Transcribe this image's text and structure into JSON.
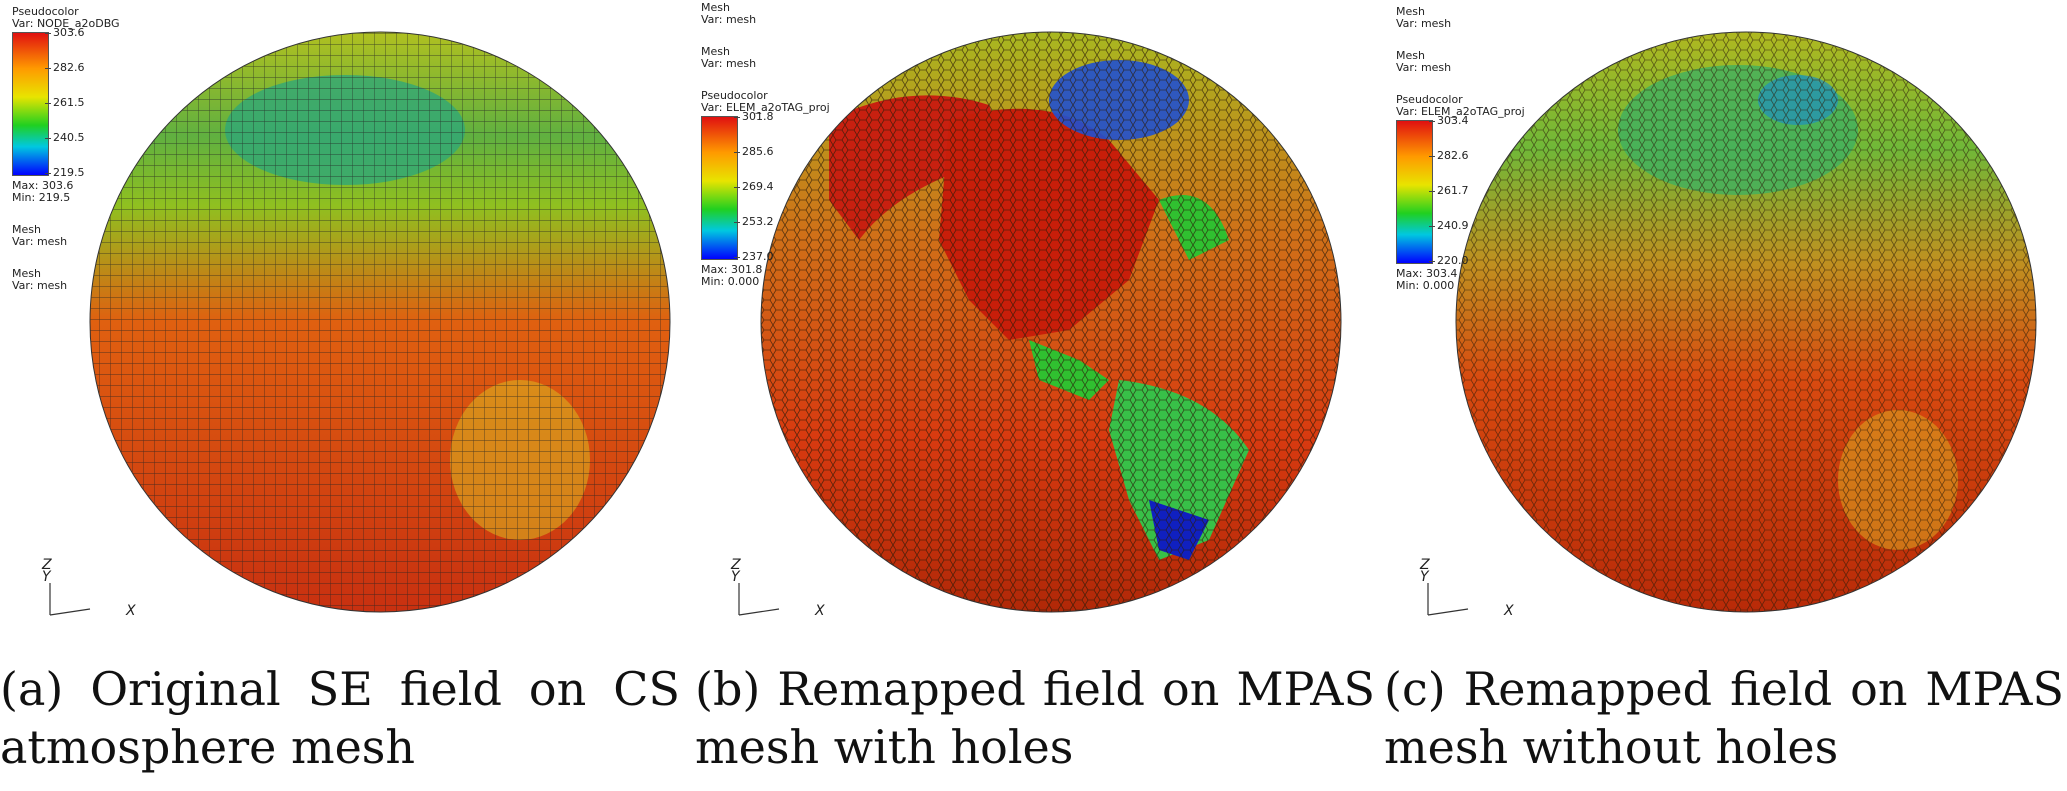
{
  "panels": [
    {
      "legend_top": {
        "pc_title": "Pseudocolor",
        "pc_var": "Var: NODE_a2oDBG"
      },
      "ticks": [
        "303.6",
        "282.6",
        "261.5",
        "240.5",
        "219.5"
      ],
      "max": "Max:  303.6",
      "min": "Min:  219.5",
      "mesh_blocks": [
        {
          "title": "Mesh",
          "var": "Var: mesh"
        },
        {
          "title": "Mesh",
          "var": "Var: mesh"
        }
      ],
      "axis_labels": {
        "z": "Z",
        "y": "Y",
        "x": "X"
      },
      "caption": "(a) Original SE field on CS atmosphere mesh"
    },
    {
      "legend_top": {
        "pc_title": "Pseudocolor",
        "pc_var": "Var: ELEM_a2oTAG_proj"
      },
      "ticks": [
        "301.8",
        "285.6",
        "269.4",
        "253.2",
        "237.0"
      ],
      "max": "Max:  301.8",
      "min": "Min:  0.000",
      "mesh_blocks": [
        {
          "title": "Mesh",
          "var": "Var: mesh"
        },
        {
          "title": "Mesh",
          "var": "Var: mesh"
        }
      ],
      "axis_labels": {
        "z": "Z",
        "y": "Y",
        "x": "X"
      },
      "caption": "(b)  Remapped  field  on MPAS mesh with holes"
    },
    {
      "legend_top": {
        "pc_title": "Pseudocolor",
        "pc_var": "Var: ELEM_a2oTAG_proj"
      },
      "ticks": [
        "303.4",
        "282.6",
        "261.7",
        "240.9",
        "220.0"
      ],
      "max": "Max:  303.4",
      "min": "Min:  0.000",
      "mesh_blocks": [
        {
          "title": "Mesh",
          "var": "Var: mesh"
        },
        {
          "title": "Mesh",
          "var": "Var: mesh"
        }
      ],
      "axis_labels": {
        "z": "Z",
        "y": "Y",
        "x": "X"
      },
      "caption": "(c)  Remapped  field  on MPAS mesh without holes"
    }
  ],
  "colors": {
    "hot": "#e01010",
    "warm": "#ff9a00",
    "mid": "#e8e400",
    "cool": "#20d020",
    "cold": "#0000ff",
    "land_red": "#c81e0a"
  }
}
